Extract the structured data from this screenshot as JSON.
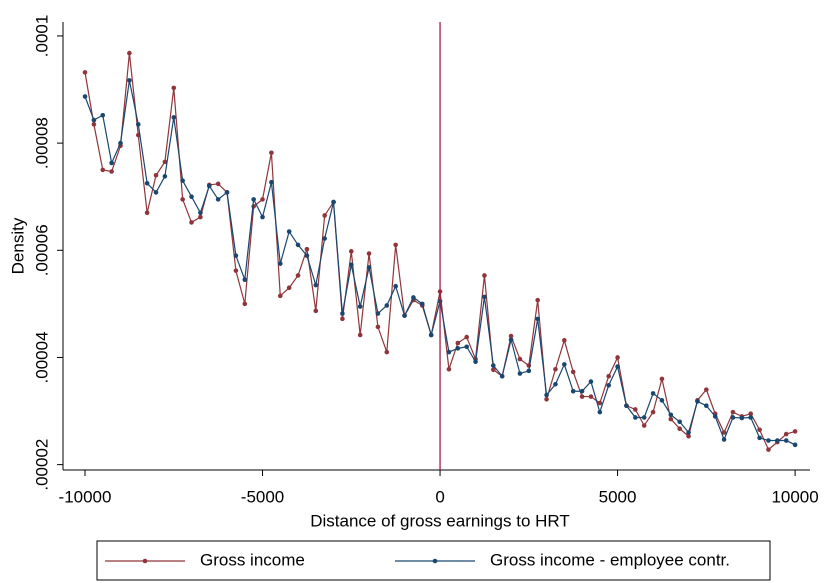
{
  "chart_data": {
    "type": "line",
    "x_label": "Distance of gross earnings to HRT",
    "y_label": "Density",
    "x": [
      -10000,
      -9750,
      -9500,
      -9250,
      -9000,
      -8750,
      -8500,
      -8250,
      -8000,
      -7750,
      -7500,
      -7250,
      -7000,
      -6750,
      -6500,
      -6250,
      -6000,
      -5750,
      -5500,
      -5250,
      -5000,
      -4750,
      -4500,
      -4250,
      -4000,
      -3750,
      -3500,
      -3250,
      -3000,
      -2750,
      -2500,
      -2250,
      -2000,
      -1750,
      -1500,
      -1250,
      -1000,
      -750,
      -500,
      -250,
      0,
      250,
      500,
      750,
      1000,
      1250,
      1500,
      1750,
      2000,
      2250,
      2500,
      2750,
      3000,
      3250,
      3500,
      3750,
      4000,
      4250,
      4500,
      4750,
      5000,
      5250,
      5500,
      5750,
      6000,
      6250,
      6500,
      6750,
      7000,
      7250,
      7500,
      7750,
      8000,
      8250,
      8500,
      8750,
      9000,
      9250,
      9500,
      9750,
      10000
    ],
    "series": [
      {
        "name": "Gross income",
        "color": "#90353b",
        "values": [
          9.32e-05,
          8.35e-05,
          7.5e-05,
          7.47e-05,
          7.95e-05,
          9.68e-05,
          8.15e-05,
          6.7e-05,
          7.4e-05,
          7.65e-05,
          9.03e-05,
          6.95e-05,
          6.52e-05,
          6.62e-05,
          7.22e-05,
          7.24e-05,
          7.08e-05,
          5.62e-05,
          5e-05,
          6.82e-05,
          6.95e-05,
          7.82e-05,
          5.15e-05,
          5.3e-05,
          5.53e-05,
          6.02e-05,
          4.87e-05,
          6.65e-05,
          6.9e-05,
          4.72e-05,
          5.98e-05,
          4.42e-05,
          5.94e-05,
          4.57e-05,
          4.1e-05,
          6.1e-05,
          4.78e-05,
          5.07e-05,
          4.97e-05,
          4.42e-05,
          5.23e-05,
          3.78e-05,
          4.27e-05,
          4.38e-05,
          3.97e-05,
          5.53e-05,
          3.77e-05,
          3.65e-05,
          4.4e-05,
          3.97e-05,
          3.85e-05,
          5.07e-05,
          3.22e-05,
          3.78e-05,
          4.32e-05,
          3.73e-05,
          3.27e-05,
          3.27e-05,
          3.15e-05,
          3.65e-05,
          4e-05,
          3.1e-05,
          3.03e-05,
          2.73e-05,
          2.98e-05,
          3.6e-05,
          2.85e-05,
          2.67e-05,
          2.53e-05,
          3.2e-05,
          3.4e-05,
          2.95e-05,
          2.6e-05,
          2.98e-05,
          2.9e-05,
          2.95e-05,
          2.65e-05,
          2.28e-05,
          2.42e-05,
          2.57e-05,
          2.62e-05
        ]
      },
      {
        "name": "Gross income - employee contr.",
        "color": "#1a476f",
        "values": [
          8.87e-05,
          8.43e-05,
          8.52e-05,
          7.63e-05,
          8e-05,
          9.17e-05,
          8.35e-05,
          7.25e-05,
          7.08e-05,
          7.38e-05,
          8.48e-05,
          7.3e-05,
          7e-05,
          6.7e-05,
          7.2e-05,
          6.95e-05,
          7.08e-05,
          5.9e-05,
          5.45e-05,
          6.95e-05,
          6.62e-05,
          7.27e-05,
          5.75e-05,
          6.35e-05,
          6.1e-05,
          5.9e-05,
          5.35e-05,
          6.22e-05,
          6.9e-05,
          4.82e-05,
          5.73e-05,
          4.95e-05,
          5.68e-05,
          4.82e-05,
          4.97e-05,
          5.33e-05,
          4.78e-05,
          5.12e-05,
          5e-05,
          4.42e-05,
          5.05e-05,
          4.1e-05,
          4.17e-05,
          4.2e-05,
          3.92e-05,
          5.13e-05,
          3.85e-05,
          3.65e-05,
          4.33e-05,
          3.7e-05,
          3.75e-05,
          4.72e-05,
          3.3e-05,
          3.5e-05,
          3.87e-05,
          3.37e-05,
          3.37e-05,
          3.55e-05,
          2.98e-05,
          3.48e-05,
          3.83e-05,
          3.1e-05,
          2.88e-05,
          2.88e-05,
          3.33e-05,
          3.2e-05,
          2.93e-05,
          2.8e-05,
          2.6e-05,
          3.18e-05,
          3.1e-05,
          2.9e-05,
          2.47e-05,
          2.88e-05,
          2.87e-05,
          2.88e-05,
          2.5e-05,
          2.45e-05,
          2.45e-05,
          2.45e-05,
          2.37e-05
        ]
      }
    ],
    "xlim": [
      -10620,
      10420
    ],
    "xticks": [
      -10000,
      -5000,
      0,
      5000,
      10000
    ],
    "ylim": [
      1.9e-05,
      0.0001026
    ],
    "yticks": [
      {
        "value": 2e-05,
        "label": ".00002"
      },
      {
        "value": 4e-05,
        "label": ".00004"
      },
      {
        "value": 6e-05,
        "label": ".00006"
      },
      {
        "value": 8e-05,
        "label": ".00008"
      },
      {
        "value": 0.0001,
        "label": ".0001"
      }
    ],
    "xline": {
      "value": 0,
      "color": "#a51d46"
    },
    "legend": "bottom"
  }
}
